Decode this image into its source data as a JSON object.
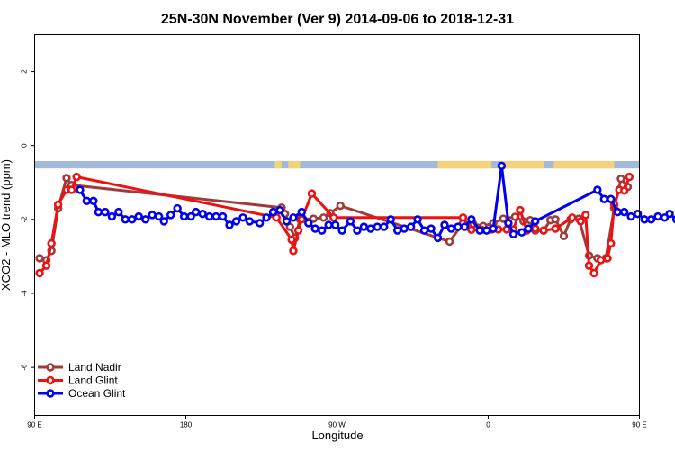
{
  "chart_data": {
    "type": "line",
    "title": "25N-30N November (Ver 9)   2014-09-06 to 2018-12-31",
    "xlabel": "Longitude",
    "ylabel": "XCO2 - MLO trend (ppm)",
    "xlim": [
      90,
      450
    ],
    "ylim": [
      -7.3,
      3
    ],
    "x_ticks": [
      {
        "value": 90,
        "label": "90 E"
      },
      {
        "value": 180,
        "label": "180"
      },
      {
        "value": 270,
        "label": "90 W"
      },
      {
        "value": 360,
        "label": "0"
      },
      {
        "value": 450,
        "label": "90 E"
      },
      {
        "value": 540,
        "label": "180"
      }
    ],
    "y_ticks": [
      {
        "value": 2,
        "label": "2"
      },
      {
        "value": 0,
        "label": "0"
      },
      {
        "value": -2,
        "label": "-2"
      },
      {
        "value": -4,
        "label": "-4"
      },
      {
        "value": -6,
        "label": "-6"
      }
    ],
    "grid": false,
    "legend_position": "bottom-left",
    "land_band": {
      "y_top": -0.42,
      "y_bottom": -0.62,
      "ocean_color": "#a3b9da",
      "land_color": "#f4d27a",
      "land_ranges": [
        [
          233,
          237
        ],
        [
          241,
          248
        ],
        [
          330,
          362
        ],
        [
          367,
          393
        ],
        [
          399,
          435
        ]
      ]
    },
    "series": [
      {
        "name": "Land Nadir",
        "color": "#a33a3a",
        "points": [
          [
            93,
            -3.05
          ],
          [
            97,
            -3.1
          ],
          [
            100,
            -2.85
          ],
          [
            104,
            -1.7
          ],
          [
            109,
            -0.88
          ],
          [
            112,
            -1.07
          ],
          [
            237,
            -1.68
          ],
          [
            239,
            -1.85
          ],
          [
            242,
            -2.2
          ],
          [
            245,
            -2.5
          ],
          [
            248,
            -2.0
          ],
          [
            256,
            -1.98
          ],
          [
            262,
            -1.95
          ],
          [
            266,
            -1.83
          ],
          [
            272,
            -1.63
          ],
          [
            337,
            -2.6
          ],
          [
            345,
            -2.1
          ],
          [
            351,
            -2.12
          ],
          [
            357,
            -2.18
          ],
          [
            363,
            -2.1
          ],
          [
            369,
            -1.98
          ],
          [
            376,
            -1.93
          ],
          [
            381,
            -2.05
          ],
          [
            385,
            -2.02
          ],
          [
            388,
            -2.3
          ],
          [
            393,
            -2.3
          ],
          [
            397,
            -2.02
          ],
          [
            400,
            -2.0
          ],
          [
            405,
            -2.45
          ],
          [
            409,
            -2.0
          ],
          [
            414,
            -1.98
          ],
          [
            420,
            -2.98
          ],
          [
            425,
            -3.05
          ],
          [
            430,
            -3.05
          ],
          [
            435,
            -1.7
          ],
          [
            439,
            -0.9
          ],
          [
            443,
            -1.12
          ]
        ]
      },
      {
        "name": "Land Glint",
        "color": "#ee1111",
        "points": [
          [
            93,
            -3.45
          ],
          [
            97,
            -3.25
          ],
          [
            100,
            -2.65
          ],
          [
            104,
            -1.6
          ],
          [
            109,
            -1.2
          ],
          [
            112,
            -1.2
          ],
          [
            115,
            -0.85
          ],
          [
            234,
            -1.95
          ],
          [
            243,
            -2.55
          ],
          [
            244,
            -2.85
          ],
          [
            247,
            -2.3
          ],
          [
            249,
            -2.0
          ],
          [
            255,
            -1.3
          ],
          [
            268,
            -1.95
          ],
          [
            345,
            -1.95
          ],
          [
            350,
            -2.28
          ],
          [
            356,
            -2.28
          ],
          [
            362,
            -2.27
          ],
          [
            366,
            -2.27
          ],
          [
            371,
            -2.27
          ],
          [
            375,
            -2.27
          ],
          [
            379,
            -1.75
          ],
          [
            383,
            -2.3
          ],
          [
            388,
            -2.25
          ],
          [
            393,
            -2.3
          ],
          [
            400,
            -2.25
          ],
          [
            410,
            -1.95
          ],
          [
            415,
            -2.05
          ],
          [
            418,
            -1.88
          ],
          [
            420,
            -3.25
          ],
          [
            423,
            -3.45
          ],
          [
            427,
            -3.1
          ],
          [
            431,
            -3.05
          ],
          [
            433,
            -2.65
          ],
          [
            435,
            -1.6
          ],
          [
            438,
            -1.2
          ],
          [
            441,
            -1.22
          ],
          [
            444,
            -0.85
          ]
        ]
      },
      {
        "name": "Ocean Glint",
        "color": "#0000ee",
        "points": [
          [
            117,
            -1.2
          ],
          [
            121,
            -1.5
          ],
          [
            125,
            -1.5
          ],
          [
            128,
            -1.8
          ],
          [
            132,
            -1.8
          ],
          [
            136,
            -1.92
          ],
          [
            140,
            -1.8
          ],
          [
            144,
            -2.0
          ],
          [
            148,
            -2.0
          ],
          [
            152,
            -1.92
          ],
          [
            156,
            -2.0
          ],
          [
            160,
            -1.88
          ],
          [
            164,
            -1.92
          ],
          [
            167,
            -2.05
          ],
          [
            171,
            -1.88
          ],
          [
            175,
            -1.7
          ],
          [
            179,
            -1.92
          ],
          [
            183,
            -1.92
          ],
          [
            186,
            -1.8
          ],
          [
            190,
            -1.85
          ],
          [
            194,
            -1.92
          ],
          [
            198,
            -1.92
          ],
          [
            202,
            -1.92
          ],
          [
            206,
            -2.15
          ],
          [
            210,
            -2.05
          ],
          [
            214,
            -1.95
          ],
          [
            218,
            -2.05
          ],
          [
            224,
            -2.1
          ],
          [
            228,
            -1.95
          ],
          [
            232,
            -1.8
          ],
          [
            236,
            -1.75
          ],
          [
            240,
            -2.05
          ],
          [
            244,
            -1.95
          ],
          [
            249,
            -1.8
          ],
          [
            253,
            -2.1
          ],
          [
            257,
            -2.25
          ],
          [
            261,
            -2.3
          ],
          [
            265,
            -2.15
          ],
          [
            269,
            -2.15
          ],
          [
            273,
            -2.3
          ],
          [
            278,
            -2.05
          ],
          [
            282,
            -2.3
          ],
          [
            286,
            -2.2
          ],
          [
            290,
            -2.25
          ],
          [
            294,
            -2.2
          ],
          [
            298,
            -2.2
          ],
          [
            302,
            -2.0
          ],
          [
            306,
            -2.3
          ],
          [
            310,
            -2.25
          ],
          [
            314,
            -2.2
          ],
          [
            318,
            -2.0
          ],
          [
            322,
            -2.3
          ],
          [
            326,
            -2.25
          ],
          [
            330,
            -2.5
          ],
          [
            334,
            -2.15
          ],
          [
            338,
            -2.25
          ],
          [
            342,
            -2.2
          ],
          [
            346,
            -2.2
          ],
          [
            350,
            -2.0
          ],
          [
            355,
            -2.3
          ],
          [
            359,
            -2.3
          ],
          [
            363,
            -2.25
          ],
          [
            368,
            -0.55
          ],
          [
            372,
            -2.1
          ],
          [
            375,
            -2.4
          ],
          [
            380,
            -2.35
          ],
          [
            384,
            -2.25
          ],
          [
            388,
            -2.05
          ],
          [
            425,
            -1.2
          ],
          [
            429,
            -1.45
          ],
          [
            433,
            -1.45
          ],
          [
            437,
            -1.8
          ],
          [
            441,
            -1.8
          ],
          [
            445,
            -1.92
          ],
          [
            449,
            -1.85
          ],
          [
            453,
            -2.0
          ],
          [
            457,
            -2.0
          ],
          [
            461,
            -1.92
          ],
          [
            465,
            -1.95
          ],
          [
            468,
            -1.85
          ],
          [
            472,
            -2.0
          ],
          [
            476,
            -1.92
          ],
          [
            480,
            -1.9
          ]
        ]
      }
    ]
  }
}
